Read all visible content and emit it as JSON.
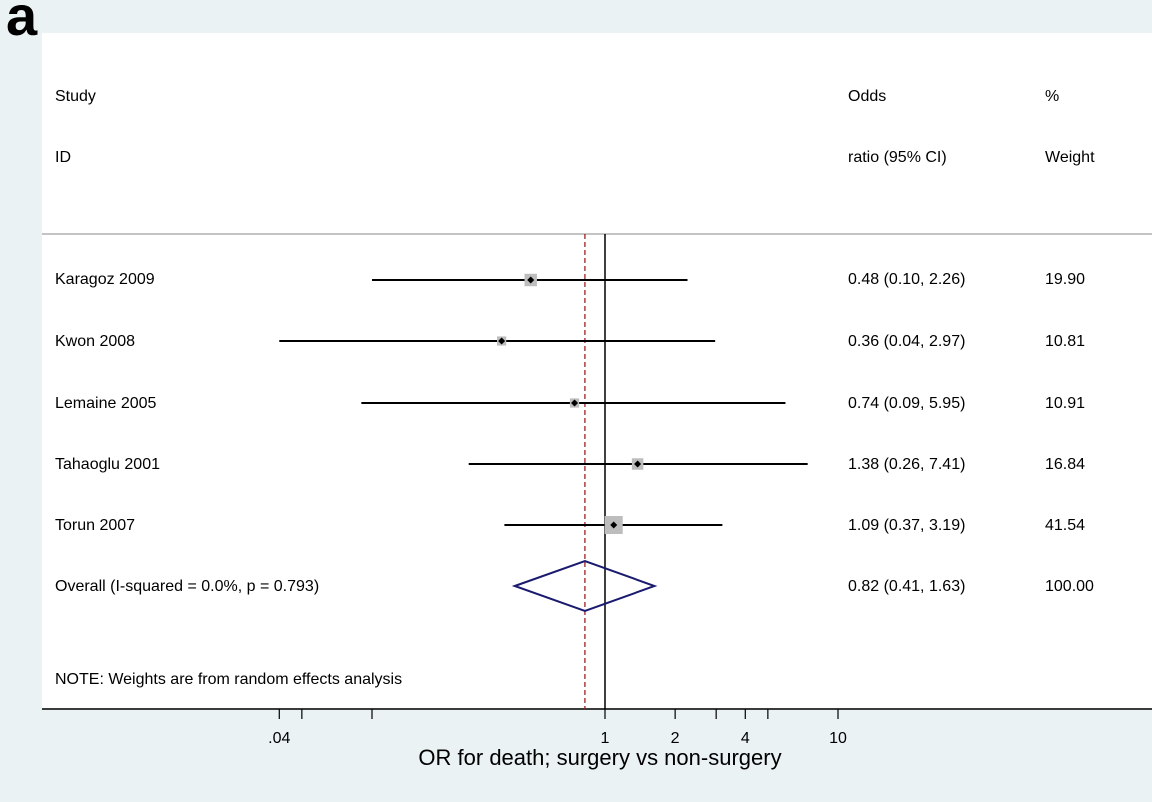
{
  "panel_label": "a",
  "header": {
    "study_line1": "Study",
    "study_line2": "ID",
    "or_line1": "Odds",
    "or_line2": "ratio (95% CI)",
    "weight_line1": "%",
    "weight_line2": "Weight"
  },
  "note": "NOTE: Weights are from random effects analysis",
  "chart_data": {
    "type": "forest",
    "xlabel": "OR for death; surgery vs non-surgery",
    "xscale": "log",
    "x_ticks": [
      0.04,
      0.05,
      0.1,
      1,
      2,
      3,
      4,
      5,
      10
    ],
    "x_tick_labels": [
      ".04",
      "",
      "",
      "1",
      "2",
      "",
      "4",
      "",
      "10"
    ],
    "null_line": 1,
    "pooled_line": 0.82,
    "studies": [
      {
        "name": "Karagoz 2009",
        "or": 0.48,
        "lo": 0.1,
        "hi": 2.26,
        "ci_text": "0.48 (0.10, 2.26)",
        "weight": 19.9,
        "weight_text": "19.90"
      },
      {
        "name": "Kwon 2008",
        "or": 0.36,
        "lo": 0.04,
        "hi": 2.97,
        "ci_text": "0.36 (0.04, 2.97)",
        "weight": 10.81,
        "weight_text": "10.81"
      },
      {
        "name": "Lemaine 2005",
        "or": 0.74,
        "lo": 0.09,
        "hi": 5.95,
        "ci_text": "0.74 (0.09, 5.95)",
        "weight": 10.91,
        "weight_text": "10.91"
      },
      {
        "name": "Tahaoglu 2001",
        "or": 1.38,
        "lo": 0.26,
        "hi": 7.41,
        "ci_text": "1.38 (0.26, 7.41)",
        "weight": 16.84,
        "weight_text": "16.84"
      },
      {
        "name": "Torun 2007",
        "or": 1.09,
        "lo": 0.37,
        "hi": 3.19,
        "ci_text": "1.09 (0.37, 3.19)",
        "weight": 41.54,
        "weight_text": "41.54"
      }
    ],
    "overall": {
      "name": "Overall  (I-squared = 0.0%, p = 0.793)",
      "or": 0.82,
      "lo": 0.41,
      "hi": 1.63,
      "ci_text": "0.82 (0.41, 1.63)",
      "weight_text": "100.00"
    },
    "colors": {
      "diamond": "#1a1a6e",
      "pooled_line": "#a02020",
      "box": "#bdbdbd",
      "line": "#000000"
    }
  }
}
